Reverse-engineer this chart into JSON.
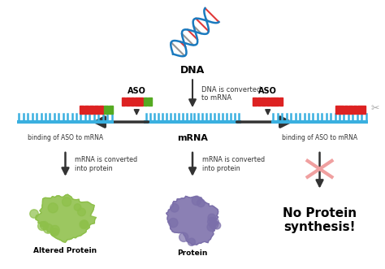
{
  "bg_color": "#ffffff",
  "dna_label": "DNA",
  "center_arrow_label": "DNA is converted\nto mRNA",
  "mrna_label": "mRNA",
  "aso_label": "ASO",
  "binding_label": "binding of ASO to mRNA",
  "convert_label": "mRNA is converted\ninto protein",
  "altered_protein_label": "Altered Protein",
  "protein_label": "Protein",
  "no_protein_label": "No Protein\nsynthesis!",
  "mrna_color": "#3ab0e0",
  "aso_red_color": "#dd2222",
  "aso_green_color": "#55aa22",
  "arrow_color": "#333333",
  "altered_protein_color": "#8ec04a",
  "protein_color": "#7b6faa",
  "dna_blue": "#1a7abf",
  "scissors_color": "#aaaaaa",
  "pink_x_color": "#f0a0a0"
}
